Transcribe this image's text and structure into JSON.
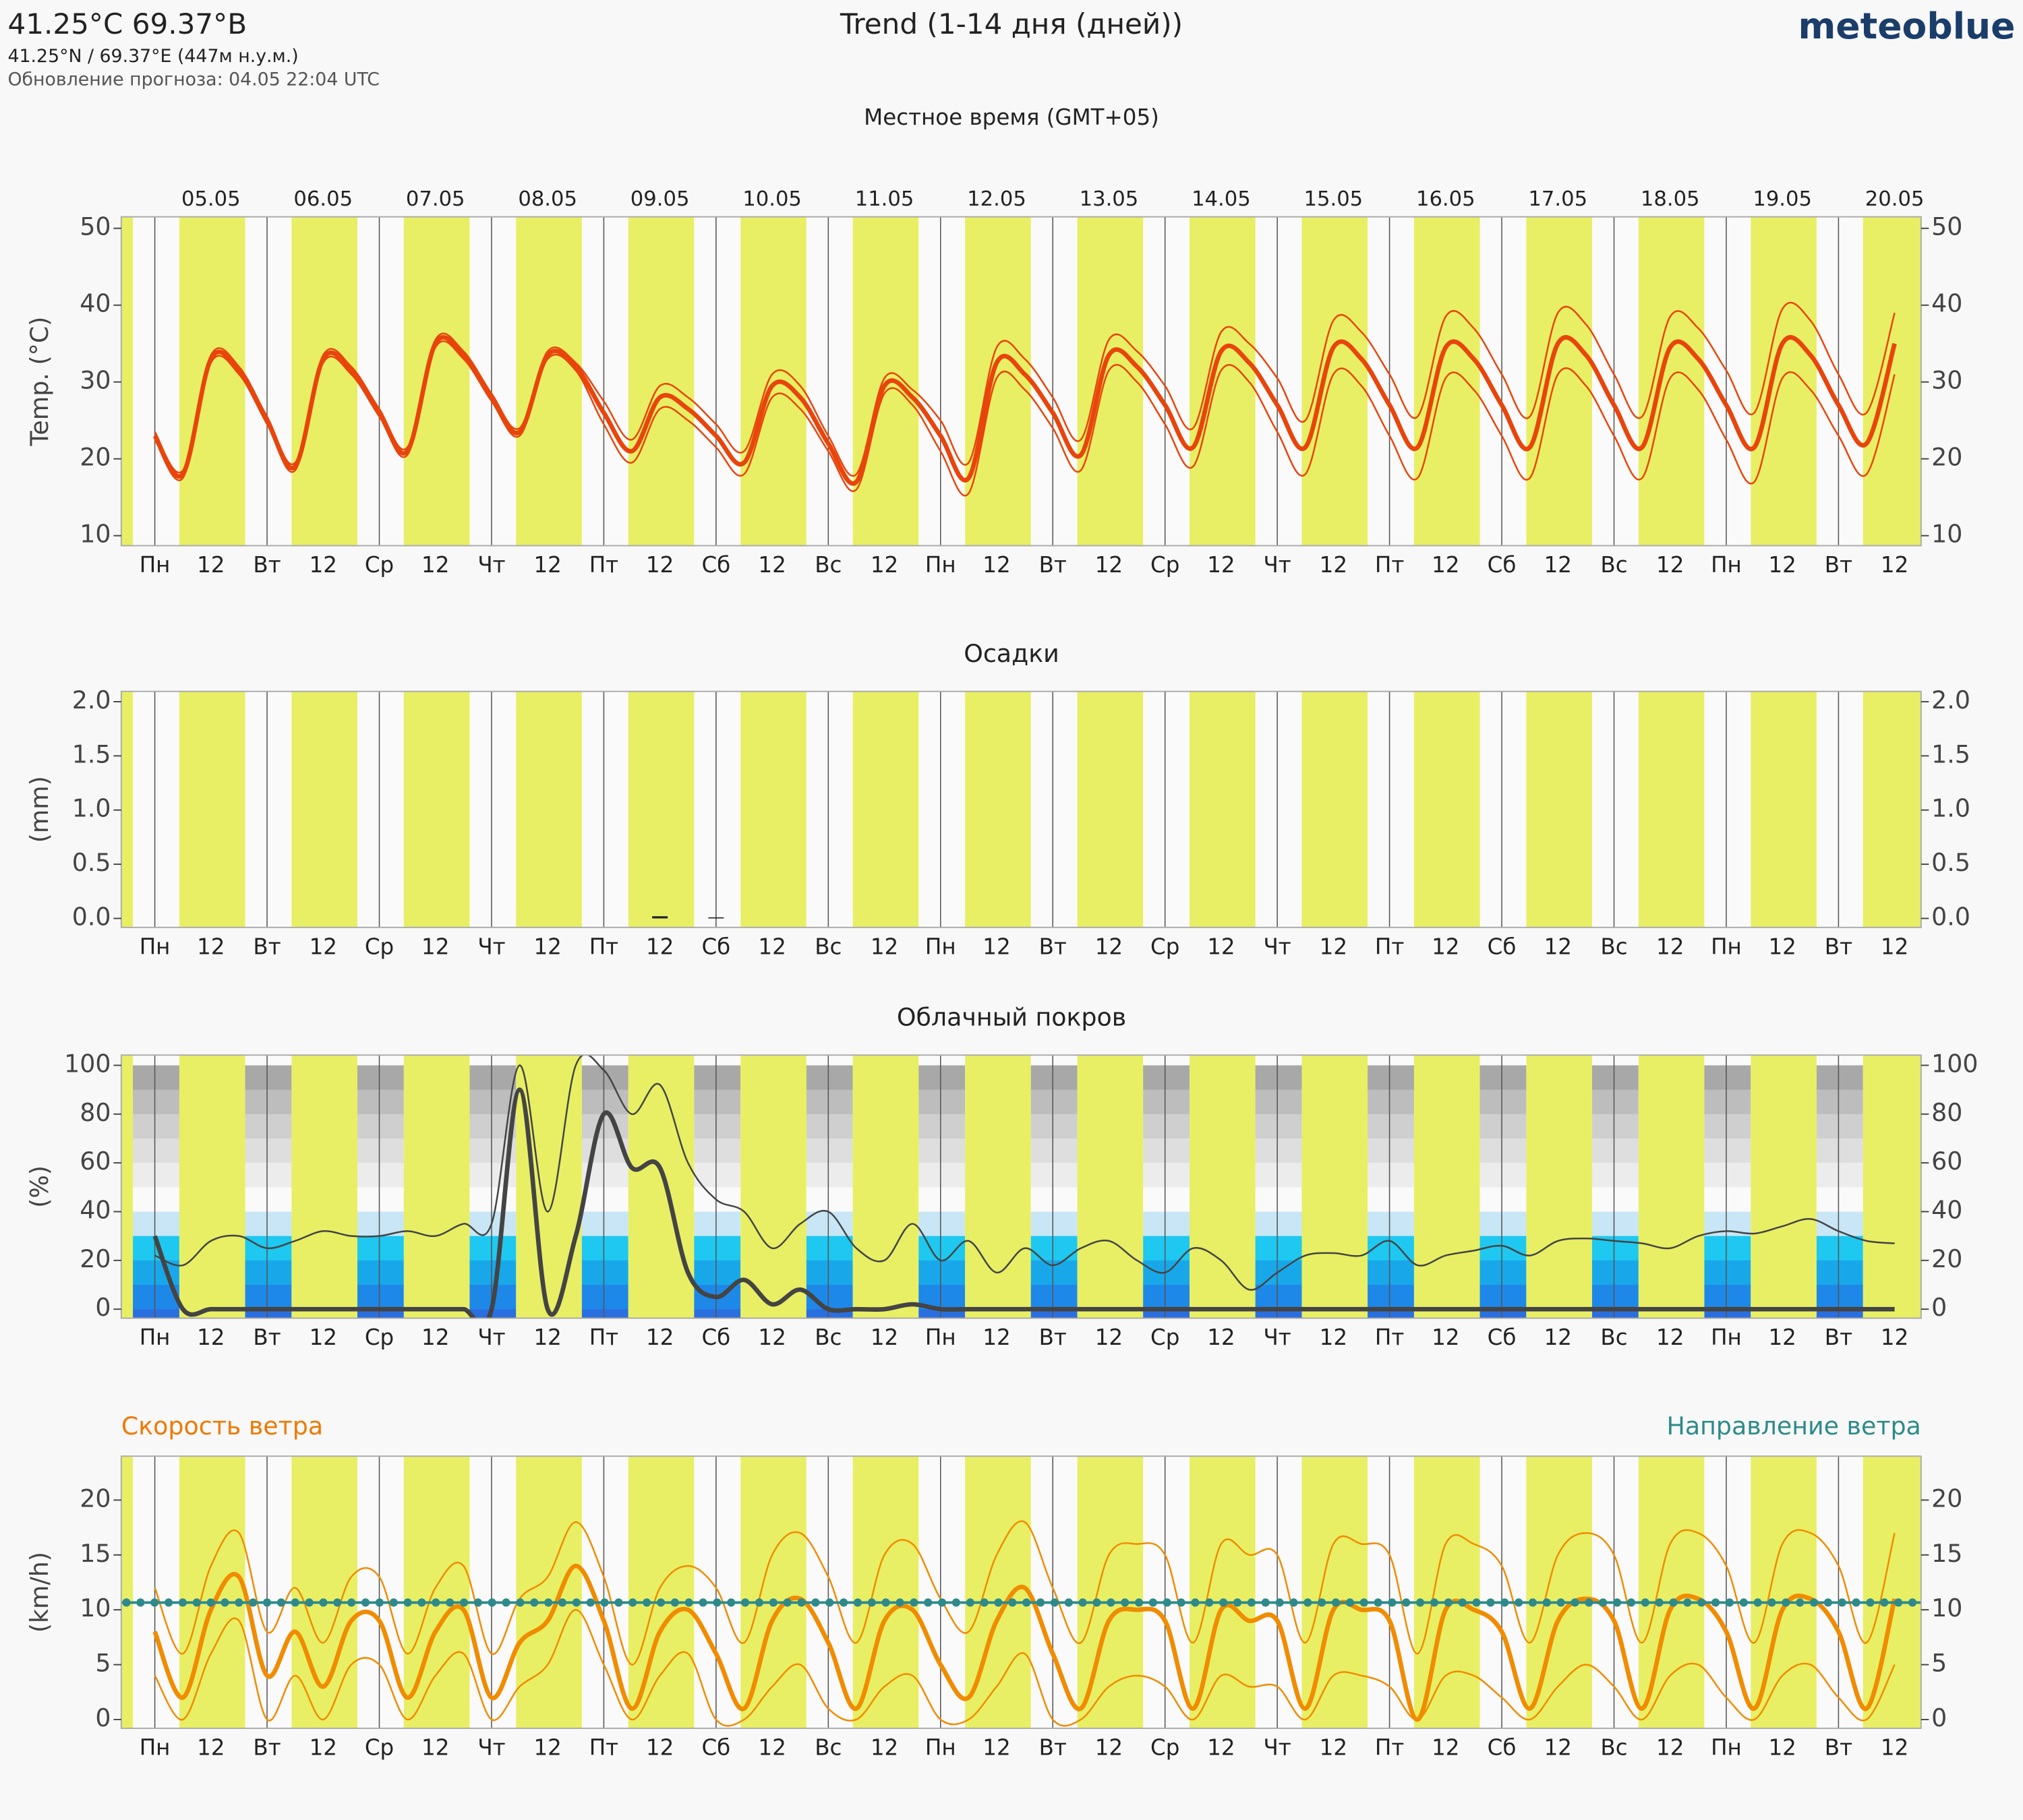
{
  "header": {
    "title": "41.25°C 69.37°В",
    "subtitle": "41.25°N / 69.37°E (447м н.у.м.)",
    "updated": "Обновление прогноза: 04.05 22:04 UTC",
    "center_title": "Trend (1-14 дня (дней))",
    "brand": "meteoblue",
    "timezone": "Местное время (GMT+05)"
  },
  "chart_data": [
    {
      "type": "line",
      "ylabel": "Temp. (°C)",
      "dates": [
        "05.05",
        "06.05",
        "07.05",
        "08.05",
        "09.05",
        "10.05",
        "11.05",
        "12.05",
        "13.05",
        "14.05",
        "15.05",
        "16.05",
        "17.05",
        "18.05",
        "19.05",
        "20.05"
      ],
      "categories": [
        "Пн",
        null,
        "12",
        null,
        "Вт",
        null,
        "12",
        null,
        "Ср",
        null,
        "12",
        null,
        "Чт",
        null,
        "12",
        null,
        "Пт",
        null,
        "12",
        null,
        "Сб",
        null,
        "12",
        null,
        "Вс",
        null,
        "12",
        null,
        "Пн",
        null,
        "12",
        null,
        "Вт",
        null,
        "12",
        null,
        "Ср",
        null,
        "12",
        null,
        "Чт",
        null,
        "12",
        null,
        "Пт",
        null,
        "12",
        null,
        "Сб",
        null,
        "12",
        null,
        "Вс",
        null,
        "12",
        null,
        "Пн",
        null,
        "12",
        null,
        "Вт",
        null,
        "12"
      ],
      "ylim": [
        8.7,
        51.5
      ],
      "yticks": [
        10,
        20,
        30,
        40,
        50
      ],
      "series": [
        {
          "color": "#e8450c",
          "width": 1.3,
          "values": [
            23.5,
            18.5,
            33.5,
            32,
            25.5,
            19.5,
            33.5,
            32,
            26.5,
            21.5,
            35.5,
            34,
            28.5,
            24,
            34,
            32.5,
            27.5,
            22.5,
            29.5,
            28,
            24.5,
            21,
            31,
            29.5,
            23,
            18,
            30.5,
            29,
            25,
            19.5,
            34.5,
            33,
            28,
            22.5,
            35.5,
            34,
            29.5,
            24,
            36.5,
            35,
            30.5,
            25,
            38,
            36.5,
            31,
            25.5,
            38.5,
            37,
            31,
            25.5,
            39,
            37.5,
            31,
            25.5,
            38.5,
            37,
            31.5,
            26,
            39.5,
            38,
            31,
            26,
            39
          ]
        },
        {
          "color": "#e8450c",
          "width": 1.3,
          "values": [
            22.5,
            17.5,
            32.5,
            31,
            24.5,
            18.5,
            32.5,
            31,
            25.5,
            20.5,
            34.5,
            33,
            27.5,
            23,
            33,
            31.5,
            24.5,
            19.5,
            26.5,
            25,
            21.5,
            18,
            28,
            26.5,
            21,
            16,
            28.5,
            27,
            21,
            15.5,
            30.5,
            29,
            24,
            18.5,
            31.5,
            30,
            24.5,
            19,
            31.5,
            30,
            23.5,
            18,
            31,
            29.5,
            23,
            17.5,
            30.5,
            29,
            23,
            17.5,
            31,
            29.5,
            23,
            17.5,
            30.5,
            29,
            22.5,
            17,
            30.5,
            29,
            23,
            18,
            31
          ]
        },
        {
          "color": "#e8450c",
          "width": 3.5,
          "values": [
            23,
            18,
            33,
            31.5,
            25,
            19,
            33,
            31.5,
            26,
            21,
            35,
            33.5,
            28,
            23.5,
            33.5,
            32,
            26,
            21,
            28,
            26.5,
            23,
            19.5,
            29.5,
            28,
            22,
            17,
            29.5,
            28,
            23,
            17.5,
            32.5,
            31,
            26,
            20.5,
            33.5,
            32,
            27,
            21.5,
            34,
            32.5,
            27,
            21.5,
            34.5,
            33,
            27,
            21.5,
            34.5,
            33,
            27,
            21.5,
            35,
            33.5,
            27,
            21.5,
            34.5,
            33,
            27,
            21.5,
            35,
            33.5,
            27,
            22,
            35
          ]
        }
      ]
    },
    {
      "type": "bar",
      "title": "Осадки",
      "ylabel": "(mm)",
      "categories": [
        "Пн",
        null,
        "12",
        null,
        "Вт",
        null,
        "12",
        null,
        "Ср",
        null,
        "12",
        null,
        "Чт",
        null,
        "12",
        null,
        "Пт",
        null,
        "12",
        null,
        "Сб",
        null,
        "12",
        null,
        "Вс",
        null,
        "12",
        null,
        "Пн",
        null,
        "12",
        null,
        "Вт",
        null,
        "12",
        null,
        "Ср",
        null,
        "12",
        null,
        "Чт",
        null,
        "12",
        null,
        "Пт",
        null,
        "12",
        null,
        "Сб",
        null,
        "12",
        null,
        "Вс",
        null,
        "12",
        null,
        "Пн",
        null,
        "12",
        null,
        "Вт",
        null,
        "12"
      ],
      "ylim": [
        -0.083,
        2.095
      ],
      "yticks": [
        {
          "value": 0,
          "label": "0.0"
        },
        0.5,
        {
          "value": 1,
          "label": "1.0"
        },
        1.5,
        {
          "value": 2,
          "label": "2.0"
        }
      ],
      "color": "#222",
      "values": [
        0,
        0,
        0,
        0,
        0,
        0,
        0,
        0,
        0,
        0,
        0,
        0,
        0,
        0,
        0,
        0,
        0,
        0,
        0.02,
        0,
        0.01,
        0,
        0,
        0,
        0,
        0,
        0,
        0,
        0,
        0,
        0,
        0,
        0,
        0,
        0,
        0,
        0,
        0,
        0,
        0,
        0,
        0,
        0,
        0,
        0,
        0,
        0,
        0,
        0,
        0,
        0,
        0,
        0,
        0,
        0,
        0,
        0,
        0,
        0,
        0,
        0,
        0,
        0
      ]
    },
    {
      "type": "line",
      "title": "Облачный покров",
      "ylabel": "(%)",
      "cloud_bands": true,
      "categories": [
        "Пн",
        null,
        "12",
        null,
        "Вт",
        null,
        "12",
        null,
        "Ср",
        null,
        "12",
        null,
        "Чт",
        null,
        "12",
        null,
        "Пт",
        null,
        "12",
        null,
        "Сб",
        null,
        "12",
        null,
        "Вс",
        null,
        "12",
        null,
        "Пн",
        null,
        "12",
        null,
        "Вт",
        null,
        "12",
        null,
        "Ср",
        null,
        "12",
        null,
        "Чт",
        null,
        "12",
        null,
        "Пт",
        null,
        "12",
        null,
        "Сб",
        null,
        "12",
        null,
        "Вс",
        null,
        "12",
        null,
        "Пн",
        null,
        "12",
        null,
        "Вт",
        null,
        "12"
      ],
      "ylim": [
        -3.7,
        104.2
      ],
      "yticks": [
        0,
        20,
        40,
        60,
        80,
        100
      ],
      "series": [
        {
          "color": "#444",
          "width": 1.3,
          "values": [
            22,
            18,
            28,
            30,
            25,
            28,
            32,
            30,
            30,
            32,
            30,
            35,
            35,
            100,
            40,
            100,
            98,
            80,
            92,
            60,
            45,
            40,
            25,
            35,
            40,
            25,
            20,
            35,
            20,
            28,
            15,
            25,
            18,
            25,
            28,
            20,
            15,
            25,
            20,
            8,
            15,
            22,
            23,
            22,
            28,
            18,
            22,
            24,
            26,
            22,
            28,
            29,
            28,
            27,
            25,
            30,
            32,
            31,
            34,
            37,
            32,
            28,
            27
          ]
        },
        {
          "color": "#444",
          "width": 3.5,
          "values": [
            30,
            0,
            0,
            0,
            0,
            0,
            0,
            0,
            0,
            0,
            0,
            0,
            0,
            90,
            0,
            30,
            80,
            58,
            58,
            15,
            5,
            12,
            2,
            8,
            0,
            0,
            0,
            2,
            0,
            0,
            0,
            0,
            0,
            0,
            0,
            0,
            0,
            0,
            0,
            0,
            0,
            0,
            0,
            0,
            0,
            0,
            0,
            0,
            0,
            0,
            0,
            0,
            0,
            0,
            0,
            0,
            0,
            0,
            0,
            0,
            0,
            0,
            0
          ]
        }
      ]
    },
    {
      "type": "line",
      "title": "Скорость ветра",
      "title_right": "Направление ветра",
      "ylabel": "(km/h)",
      "categories": [
        "Пн",
        null,
        "12",
        null,
        "Вт",
        null,
        "12",
        null,
        "Ср",
        null,
        "12",
        null,
        "Чт",
        null,
        "12",
        null,
        "Пт",
        null,
        "12",
        null,
        "Сб",
        null,
        "12",
        null,
        "Вс",
        null,
        "12",
        null,
        "Пн",
        null,
        "12",
        null,
        "Вт",
        null,
        "12",
        null,
        "Ср",
        null,
        "12",
        null,
        "Чт",
        null,
        "12",
        null,
        "Пт",
        null,
        "12",
        null,
        "Сб",
        null,
        "12",
        null,
        "Вс",
        null,
        "12",
        null,
        "Пн",
        null,
        "12",
        null,
        "Вт",
        null,
        "12"
      ],
      "ylim": [
        -0.8,
        24
      ],
      "yticks": [
        0,
        5,
        10,
        15,
        20
      ],
      "series": [
        {
          "color": "#f08c00",
          "width": 1.3,
          "values": [
            12,
            6,
            14,
            17,
            8,
            12,
            7,
            13,
            13,
            6,
            12,
            14,
            6,
            11,
            13,
            18,
            13,
            5,
            12,
            14,
            12,
            7,
            15,
            17,
            13,
            7,
            15,
            16,
            11,
            8,
            15,
            18,
            12,
            7,
            15,
            16,
            15,
            7,
            16,
            15,
            15,
            7,
            16,
            16,
            15,
            6,
            16,
            16,
            14,
            7,
            15,
            17,
            15,
            7,
            16,
            17,
            14,
            7,
            16,
            17,
            14,
            7,
            17
          ]
        },
        {
          "color": "#f08c00",
          "width": 1.3,
          "values": [
            4,
            0,
            6,
            9,
            0,
            4,
            0,
            5,
            5,
            0,
            4,
            6,
            0,
            3,
            5,
            10,
            5,
            0,
            4,
            6,
            0,
            0,
            3,
            5,
            1,
            0,
            3,
            4,
            0,
            0,
            3,
            6,
            0,
            0,
            3,
            4,
            3,
            0,
            4,
            3,
            3,
            0,
            4,
            4,
            3,
            0,
            4,
            4,
            2,
            0,
            3,
            5,
            3,
            0,
            4,
            5,
            2,
            0,
            4,
            5,
            2,
            0,
            5
          ]
        },
        {
          "color": "#f08c00",
          "width": 3.5,
          "values": [
            8,
            2,
            10,
            13,
            4,
            8,
            3,
            9,
            9,
            2,
            8,
            10,
            2,
            7,
            9,
            14,
            9,
            1,
            8,
            10,
            6,
            1,
            9,
            11,
            7,
            1,
            9,
            10,
            5,
            2,
            9,
            12,
            6,
            1,
            9,
            10,
            9,
            1,
            10,
            9,
            9,
            1,
            10,
            10,
            9,
            0,
            10,
            10,
            8,
            1,
            9,
            11,
            9,
            1,
            10,
            11,
            8,
            1,
            10,
            11,
            8,
            1,
            11
          ]
        }
      ]
    }
  ]
}
